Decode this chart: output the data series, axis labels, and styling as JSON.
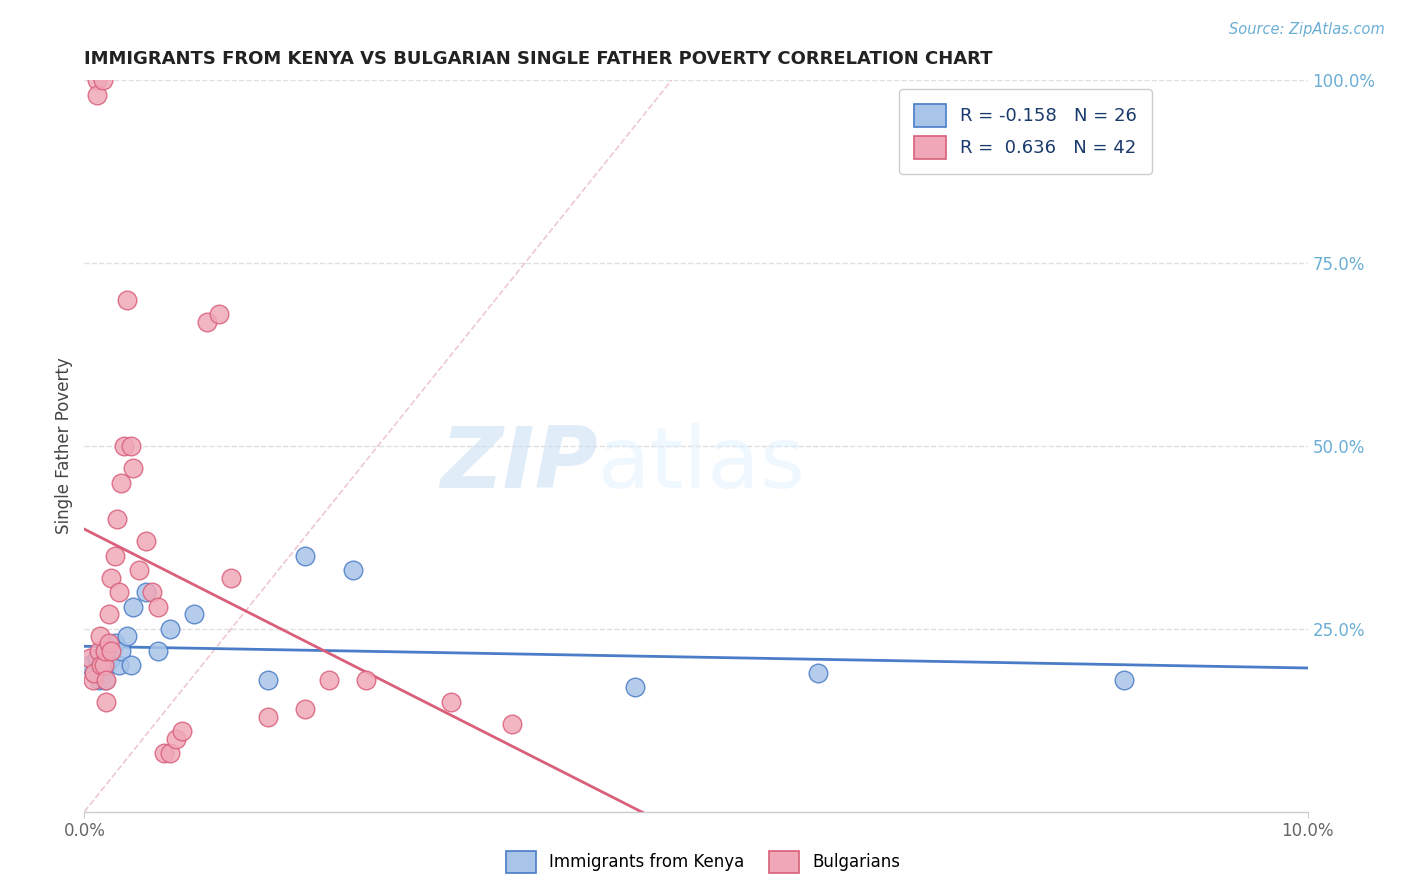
{
  "title": "IMMIGRANTS FROM KENYA VS BULGARIAN SINGLE FATHER POVERTY CORRELATION CHART",
  "source": "Source: ZipAtlas.com",
  "ylabel": "Single Father Poverty",
  "legend1_label": "Immigrants from Kenya",
  "legend2_label": "Bulgarians",
  "r1": -0.158,
  "n1": 26,
  "r2": 0.636,
  "n2": 42,
  "color_kenya": "#a8c4e8",
  "color_bulgaria": "#f0a8b8",
  "color_kenya_line": "#4a7cc7",
  "color_bulgaria_line": "#d95f7a",
  "xlim": [
    0.0,
    10.0
  ],
  "ylim": [
    0.0,
    100.0
  ],
  "watermark_zip": "ZIP",
  "watermark_atlas": "atlas",
  "kenya_x": [
    0.05,
    0.08,
    0.1,
    0.12,
    0.13,
    0.15,
    0.17,
    0.18,
    0.2,
    0.22,
    0.25,
    0.28,
    0.3,
    0.35,
    0.38,
    0.4,
    0.5,
    0.6,
    0.7,
    0.9,
    1.5,
    1.8,
    2.2,
    4.5,
    6.0,
    8.5
  ],
  "kenya_y": [
    20,
    19,
    21,
    18,
    20,
    19,
    18,
    20,
    22,
    21,
    23,
    20,
    22,
    24,
    20,
    28,
    30,
    22,
    25,
    27,
    18,
    35,
    33,
    17,
    19,
    18
  ],
  "bulgaria_x": [
    0.05,
    0.07,
    0.08,
    0.1,
    0.1,
    0.12,
    0.13,
    0.14,
    0.15,
    0.16,
    0.17,
    0.18,
    0.18,
    0.2,
    0.2,
    0.22,
    0.22,
    0.25,
    0.27,
    0.28,
    0.3,
    0.32,
    0.35,
    0.38,
    0.4,
    0.45,
    0.5,
    0.55,
    0.6,
    0.65,
    0.7,
    0.75,
    0.8,
    1.0,
    1.1,
    1.2,
    1.5,
    1.8,
    2.0,
    2.3,
    3.0,
    3.5
  ],
  "bulgaria_y": [
    21,
    18,
    19,
    100,
    98,
    22,
    24,
    20,
    100,
    20,
    22,
    18,
    15,
    27,
    23,
    32,
    22,
    35,
    40,
    30,
    45,
    50,
    70,
    50,
    47,
    33,
    37,
    30,
    28,
    8,
    8,
    10,
    11,
    67,
    68,
    32,
    13,
    14,
    18,
    18,
    15,
    12
  ],
  "ref_line_x": [
    0.0,
    4.8
  ],
  "ref_line_y": [
    0.0,
    100.0
  ]
}
